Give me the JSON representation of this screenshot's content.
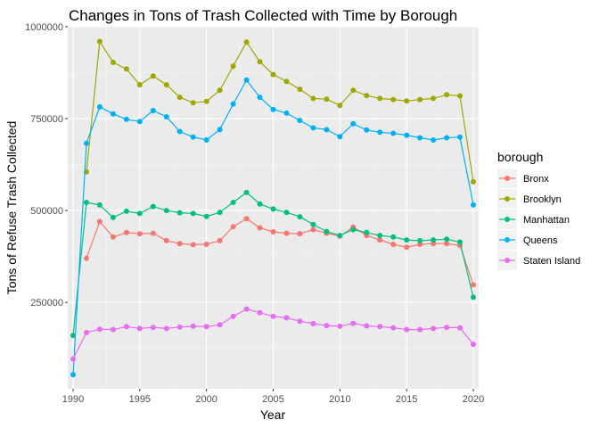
{
  "chart_data": {
    "type": "line",
    "title": "Changes in Tons of Trash Collected with Time by Borough",
    "xlabel": "Year",
    "ylabel": "Tons of Refuse Trash Collected",
    "xlim": [
      1989.6,
      2020.4
    ],
    "ylim": [
      15000,
      1000000
    ],
    "x_ticks": [
      1990,
      1995,
      2000,
      2005,
      2010,
      2015,
      2020
    ],
    "y_ticks": [
      250000,
      500000,
      750000,
      1000000
    ],
    "y_tick_labels": [
      "250000",
      "500000",
      "750000",
      "1000000"
    ],
    "grid": true,
    "legend_title": "borough",
    "legend_position": "right",
    "x": [
      1990,
      1991,
      1992,
      1993,
      1994,
      1995,
      1996,
      1997,
      1998,
      1999,
      2000,
      2001,
      2002,
      2003,
      2004,
      2005,
      2006,
      2007,
      2008,
      2009,
      2010,
      2011,
      2012,
      2013,
      2014,
      2015,
      2016,
      2017,
      2018,
      2019,
      2020
    ],
    "series": [
      {
        "name": "Bronx",
        "color": "#F8766D",
        "values": [
          null,
          370000,
          470000,
          428000,
          440000,
          437000,
          438000,
          418000,
          410000,
          407000,
          408000,
          418000,
          456000,
          478000,
          453000,
          442000,
          438000,
          437000,
          448000,
          438000,
          430000,
          455000,
          432000,
          420000,
          408000,
          400000,
          408000,
          410000,
          410000,
          405000,
          298000
        ]
      },
      {
        "name": "Brooklyn",
        "color": "#A3A500",
        "values": [
          null,
          605000,
          960000,
          903000,
          885000,
          842000,
          866000,
          842000,
          808000,
          793000,
          797000,
          827000,
          893000,
          958000,
          905000,
          870000,
          851000,
          830000,
          805000,
          803000,
          786000,
          827000,
          813000,
          805000,
          802000,
          798000,
          802000,
          805000,
          815000,
          812000,
          578000
        ]
      },
      {
        "name": "Manhattan",
        "color": "#00BF7D",
        "values": [
          160000,
          522000,
          515000,
          481000,
          498000,
          492000,
          511000,
          500000,
          494000,
          492000,
          484000,
          495000,
          522000,
          549000,
          518000,
          504000,
          495000,
          483000,
          462000,
          443000,
          432000,
          448000,
          440000,
          432000,
          428000,
          420000,
          418000,
          420000,
          422000,
          414000,
          264000
        ]
      },
      {
        "name": "Queens",
        "color": "#00B0F6",
        "values": [
          53000,
          683000,
          782000,
          763000,
          748000,
          742000,
          772000,
          755000,
          715000,
          700000,
          692000,
          720000,
          790000,
          855000,
          808000,
          775000,
          765000,
          745000,
          725000,
          720000,
          701000,
          736000,
          719000,
          713000,
          710000,
          705000,
          698000,
          692000,
          698000,
          700000,
          515000
        ]
      },
      {
        "name": "Staten Island",
        "color": "#E76BF3",
        "values": [
          96000,
          168000,
          177000,
          176000,
          184000,
          179000,
          182000,
          179000,
          183000,
          185000,
          184000,
          189000,
          212000,
          232000,
          222000,
          212000,
          208000,
          199000,
          192000,
          187000,
          185000,
          193000,
          186000,
          184000,
          181000,
          176000,
          176000,
          179000,
          182000,
          181000,
          136000
        ]
      }
    ]
  }
}
